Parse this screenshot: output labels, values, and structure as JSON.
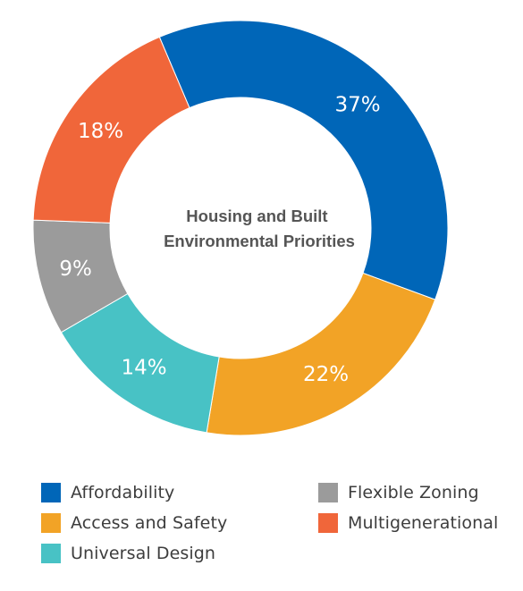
{
  "chart_data": {
    "type": "pie",
    "title": "Housing and Built Environmental Priorities",
    "title_lines": [
      "Housing and Built",
      "Environmental Priorities"
    ],
    "slices": [
      {
        "name": "Affordability",
        "value": 37,
        "label": "37%",
        "color": "#0066b8"
      },
      {
        "name": "Access and Safety",
        "value": 22,
        "label": "22%",
        "color": "#f2a326"
      },
      {
        "name": "Universal Design",
        "value": 14,
        "label": "14%",
        "color": "#48c2c5"
      },
      {
        "name": "Flexible Zoning",
        "value": 9,
        "label": "9%",
        "color": "#9b9b9b"
      },
      {
        "name": "Multigenerational",
        "value": 18,
        "label": "18%",
        "color": "#f0663a"
      }
    ],
    "donut": true,
    "legend_position": "bottom"
  },
  "legend": {
    "items": [
      {
        "label": "Affordability",
        "color": "#0066b8"
      },
      {
        "label": "Flexible Zoning",
        "color": "#9b9b9b"
      },
      {
        "label": "Access and Safety",
        "color": "#f2a326"
      },
      {
        "label": "Multigenerational",
        "color": "#f0663a"
      },
      {
        "label": "Universal Design",
        "color": "#48c2c5"
      }
    ]
  }
}
